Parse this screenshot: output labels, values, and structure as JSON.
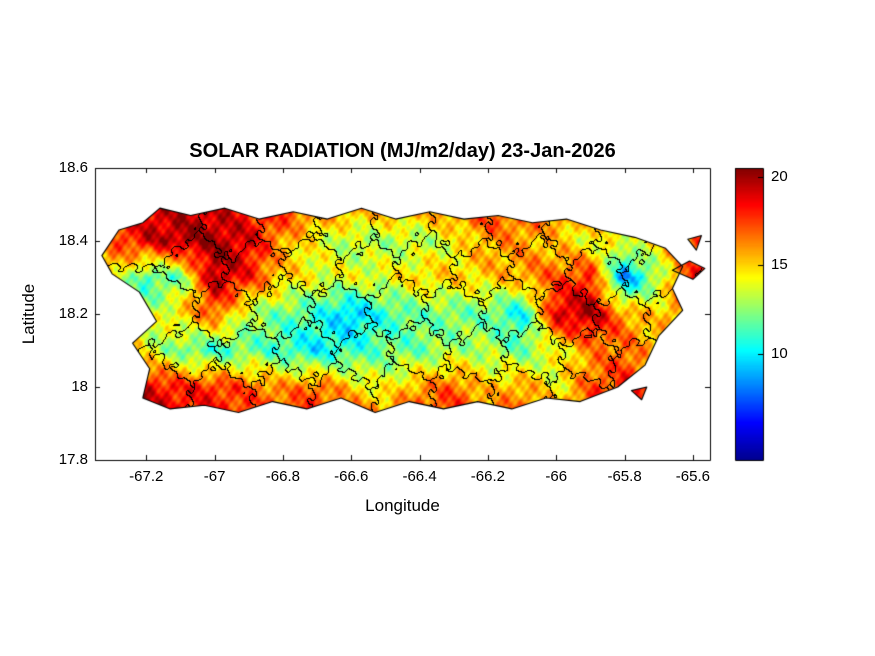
{
  "figure": {
    "background": "#ffffff"
  },
  "chart_data": {
    "type": "heatmap",
    "title": "SOLAR RADIATION (MJ/m2/day) 23-Jan-2026",
    "xlabel": "Longitude",
    "ylabel": "Latitude",
    "units": "MJ/m2/day",
    "xlim": [
      -67.35,
      -65.55
    ],
    "ylim": [
      17.8,
      18.6
    ],
    "xticks": [
      -67.2,
      -67,
      -66.8,
      -66.6,
      -66.4,
      -66.2,
      -66,
      -65.8,
      -65.6
    ],
    "yticks": [
      17.8,
      18,
      18.2,
      18.4,
      18.6
    ],
    "grid_lines": false,
    "colorbar": {
      "position": "right",
      "vmin": 4,
      "vmax": 20.5,
      "ticks": [
        10,
        15,
        20
      ],
      "colormap": "jet"
    },
    "colormap_stops": [
      [
        0,
        [
          0,
          0,
          143
        ]
      ],
      [
        0.125,
        [
          0,
          0,
          255
        ]
      ],
      [
        0.375,
        [
          0,
          255,
          255
        ]
      ],
      [
        0.625,
        [
          255,
          255,
          0
        ]
      ],
      [
        0.875,
        [
          255,
          0,
          0
        ]
      ],
      [
        1,
        [
          128,
          0,
          0
        ]
      ]
    ],
    "grid": {
      "lon_start": -67.3,
      "lon_step": 0.1,
      "lat_start": 18.6,
      "lat_step": -0.1,
      "values": [
        [
          18,
          19,
          19,
          19,
          18,
          18,
          17,
          16,
          16,
          16,
          17,
          18,
          17,
          17,
          16,
          16,
          15,
          16,
          16
        ],
        [
          18,
          19,
          19,
          19,
          18,
          18,
          17,
          16,
          16,
          16,
          17,
          18,
          17,
          17,
          16,
          16,
          15,
          16,
          16
        ],
        [
          17,
          19,
          20,
          20,
          19,
          16,
          14,
          13,
          13,
          13,
          14,
          16,
          16,
          15,
          14,
          14,
          15,
          17,
          17
        ],
        [
          15,
          11,
          12,
          20,
          18,
          15,
          14,
          14,
          14,
          15,
          15,
          15,
          16,
          17,
          18,
          8,
          13,
          18,
          18
        ],
        [
          13,
          13,
          15,
          17,
          13,
          12,
          11,
          9,
          11,
          12,
          12,
          12,
          10,
          19,
          20,
          16,
          15,
          17,
          17
        ],
        [
          17,
          14,
          12,
          11,
          12,
          11,
          10,
          11,
          12,
          12,
          13,
          13,
          12,
          14,
          16,
          17,
          15,
          16,
          16
        ],
        [
          18,
          19,
          18,
          18,
          17,
          16,
          17,
          15,
          14,
          16,
          17,
          15,
          16,
          14,
          17,
          18,
          16,
          16,
          16
        ],
        [
          18,
          19,
          19,
          18,
          18,
          18,
          18,
          17,
          17,
          18,
          18,
          17,
          17,
          17,
          18,
          18,
          17,
          17,
          17
        ]
      ]
    },
    "island_outline": [
      [
        -67.33,
        18.36
      ],
      [
        -67.28,
        18.43
      ],
      [
        -67.21,
        18.45
      ],
      [
        -67.16,
        18.49
      ],
      [
        -67.07,
        18.47
      ],
      [
        -66.97,
        18.49
      ],
      [
        -66.87,
        18.46
      ],
      [
        -66.77,
        18.48
      ],
      [
        -66.67,
        18.46
      ],
      [
        -66.57,
        18.49
      ],
      [
        -66.47,
        18.46
      ],
      [
        -66.37,
        18.48
      ],
      [
        -66.27,
        18.46
      ],
      [
        -66.17,
        18.47
      ],
      [
        -66.07,
        18.45
      ],
      [
        -65.97,
        18.46
      ],
      [
        -65.87,
        18.43
      ],
      [
        -65.77,
        18.41
      ],
      [
        -65.68,
        18.38
      ],
      [
        -65.63,
        18.33
      ],
      [
        -65.66,
        18.27
      ],
      [
        -65.63,
        18.21
      ],
      [
        -65.7,
        18.14
      ],
      [
        -65.74,
        18.06
      ],
      [
        -65.82,
        18.0
      ],
      [
        -65.93,
        17.96
      ],
      [
        -66.03,
        17.97
      ],
      [
        -66.13,
        17.94
      ],
      [
        -66.23,
        17.96
      ],
      [
        -66.33,
        17.94
      ],
      [
        -66.43,
        17.96
      ],
      [
        -66.53,
        17.93
      ],
      [
        -66.63,
        17.97
      ],
      [
        -66.73,
        17.94
      ],
      [
        -66.83,
        17.96
      ],
      [
        -66.93,
        17.93
      ],
      [
        -67.03,
        17.95
      ],
      [
        -67.13,
        17.94
      ],
      [
        -67.21,
        17.97
      ],
      [
        -67.19,
        18.05
      ],
      [
        -67.24,
        18.12
      ],
      [
        -67.17,
        18.18
      ],
      [
        -67.22,
        18.26
      ],
      [
        -67.3,
        18.31
      ]
    ],
    "islets": [
      [
        [
          -65.66,
          18.32
        ],
        [
          -65.61,
          18.345
        ],
        [
          -65.565,
          18.325
        ],
        [
          -65.6,
          18.295
        ]
      ],
      [
        [
          -65.615,
          18.405
        ],
        [
          -65.575,
          18.415
        ],
        [
          -65.59,
          18.375
        ]
      ],
      [
        [
          -65.78,
          17.99
        ],
        [
          -65.735,
          18.0
        ],
        [
          -65.75,
          17.965
        ]
      ]
    ],
    "municipality_seeds": [
      [
        -67.13,
        18.44
      ],
      [
        -66.95,
        18.43
      ],
      [
        -66.78,
        18.44
      ],
      [
        -66.62,
        18.43
      ],
      [
        -66.45,
        18.44
      ],
      [
        -66.28,
        18.43
      ],
      [
        -66.12,
        18.44
      ],
      [
        -65.95,
        18.42
      ],
      [
        -65.8,
        18.4
      ],
      [
        -67.05,
        18.34
      ],
      [
        -66.88,
        18.32
      ],
      [
        -66.72,
        18.34
      ],
      [
        -66.55,
        18.32
      ],
      [
        -66.38,
        18.34
      ],
      [
        -66.22,
        18.32
      ],
      [
        -66.05,
        18.33
      ],
      [
        -65.88,
        18.31
      ],
      [
        -65.72,
        18.3
      ],
      [
        -67.14,
        18.21
      ],
      [
        -66.97,
        18.2
      ],
      [
        -66.8,
        18.22
      ],
      [
        -66.63,
        18.2
      ],
      [
        -66.47,
        18.22
      ],
      [
        -66.3,
        18.2
      ],
      [
        -66.13,
        18.22
      ],
      [
        -65.97,
        18.2
      ],
      [
        -65.8,
        18.18
      ],
      [
        -65.67,
        18.2
      ],
      [
        -67.08,
        18.09
      ],
      [
        -66.9,
        18.08
      ],
      [
        -66.73,
        18.1
      ],
      [
        -66.56,
        18.08
      ],
      [
        -66.4,
        18.1
      ],
      [
        -66.23,
        18.08
      ],
      [
        -66.06,
        18.09
      ],
      [
        -65.9,
        18.07
      ],
      [
        -65.76,
        18.05
      ],
      [
        -67.15,
        18.0
      ],
      [
        -66.98,
        17.98
      ],
      [
        -66.8,
        17.99
      ],
      [
        -66.62,
        17.98
      ],
      [
        -66.45,
        17.99
      ],
      [
        -66.27,
        17.98
      ],
      [
        -66.1,
        17.99
      ],
      [
        -65.93,
        17.98
      ]
    ]
  }
}
